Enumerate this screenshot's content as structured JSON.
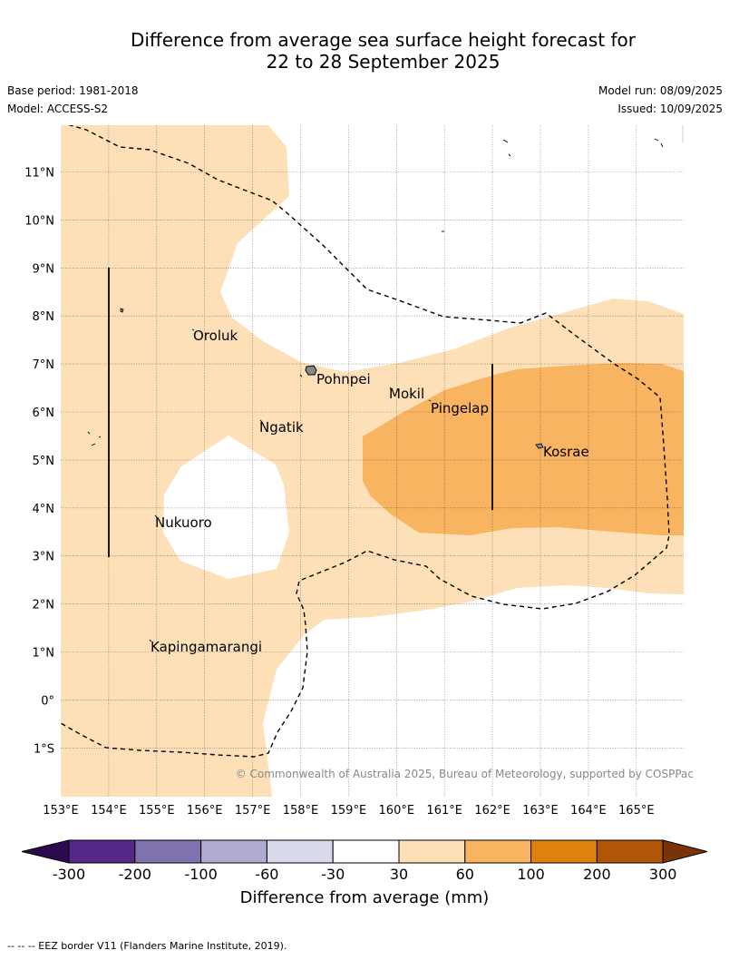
{
  "title_line1": "Difference from average sea surface height forecast for",
  "title_line2": "22 to 28 September 2025",
  "base_period": "Base period: 1981-2018",
  "model": "Model: ACCESS-S2",
  "model_run": "Model run: 08/09/2025",
  "issued": "Issued: 10/09/2025",
  "copyright": "© Commonwealth of Australia 2025, Bureau of Meteorology, supported by COSPPac",
  "map": {
    "lon_labels": [
      "153°E",
      "154°E",
      "155°E",
      "156°E",
      "157°E",
      "158°E",
      "159°E",
      "160°E",
      "161°E",
      "162°E",
      "163°E",
      "164°E",
      "165°E"
    ],
    "lat_labels": [
      "11°N",
      "10°N",
      "9°N",
      "8°N",
      "7°N",
      "6°N",
      "5°N",
      "4°N",
      "3°N",
      "2°N",
      "1°N",
      "0°",
      "1°S"
    ],
    "places": [
      {
        "name": "Oroluk"
      },
      {
        "name": "Pohnpei"
      },
      {
        "name": "Mokil"
      },
      {
        "name": "Pingelap"
      },
      {
        "name": "Ngatik"
      },
      {
        "name": "Kosrae"
      },
      {
        "name": "Nukuoro"
      },
      {
        "name": "Kapingamarangi"
      }
    ],
    "colors": {
      "c30_60": "#fde0b8",
      "c60_100": "#f9b462",
      "eez": "#000000"
    }
  },
  "colorbar": {
    "label": "Difference from average (mm)",
    "ticks": [
      "-300",
      "-200",
      "-100",
      "-60",
      "-30",
      "30",
      "60",
      "100",
      "200",
      "300"
    ],
    "colors": [
      "#2d0a4e",
      "#532888",
      "#8072ae",
      "#b0a9d1",
      "#d9d9ec",
      "#ffffff",
      "#fde0b8",
      "#f9b462",
      "#e0810f",
      "#b05606",
      "#7a3306"
    ]
  },
  "footnote": "--  --  -- EEZ border V11 (Flanders Marine Institute, 2019)."
}
